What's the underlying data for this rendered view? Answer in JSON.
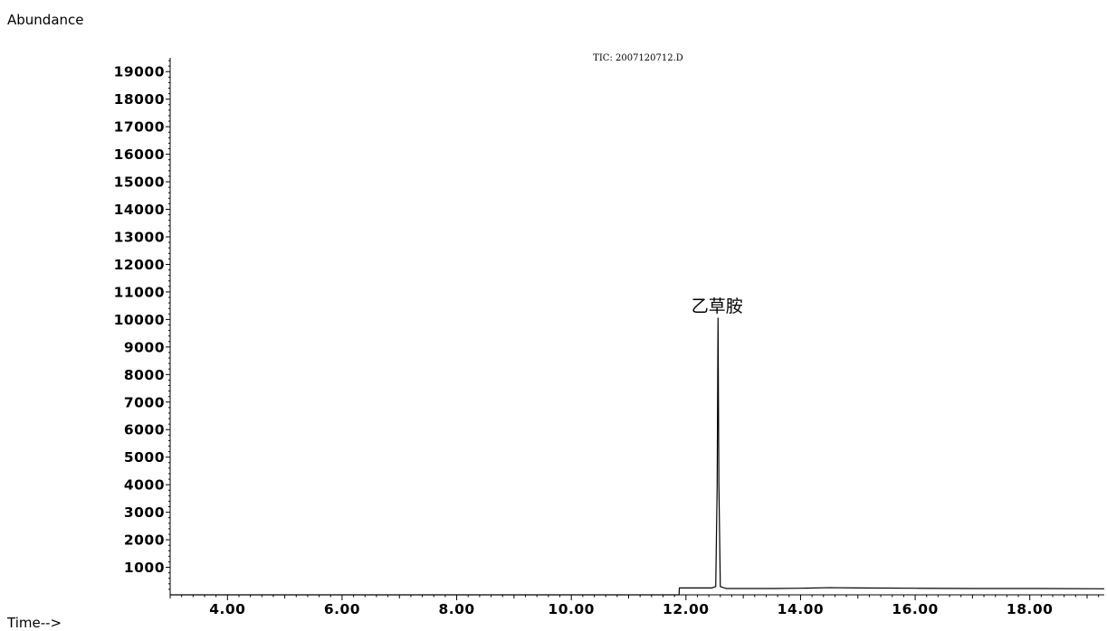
{
  "chart_data": {
    "type": "line",
    "title": "TIC: 2007120712.D",
    "ylabel": "Abundance",
    "xlabel": "Time-->",
    "xlim": [
      3.0,
      19.3
    ],
    "ylim": [
      0,
      19500
    ],
    "xticks": [
      "4.00",
      "6.00",
      "8.00",
      "10.00",
      "12.00",
      "14.00",
      "16.00",
      "18.00"
    ],
    "yticks": [
      "1000",
      "2000",
      "3000",
      "4000",
      "5000",
      "6000",
      "7000",
      "8000",
      "9000",
      "10000",
      "11000",
      "12000",
      "13000",
      "14000",
      "15000",
      "16000",
      "17000",
      "18000",
      "19000"
    ],
    "series": [
      {
        "x": [
          3.0,
          11.88,
          11.885,
          12.3,
          12.45,
          12.52,
          12.545,
          12.56,
          12.575,
          12.6,
          12.7,
          13.5,
          14.0,
          14.5,
          15.0,
          16.0,
          17.0,
          18.0,
          19.3
        ],
        "y": [
          0,
          0,
          250,
          250,
          250,
          300,
          4000,
          10050,
          4000,
          300,
          230,
          230,
          240,
          260,
          250,
          240,
          230,
          230,
          220
        ]
      }
    ],
    "annotations": [
      {
        "text": "乙草胺",
        "x": 12.56,
        "y": 10050
      }
    ],
    "line_color": "#000000"
  }
}
